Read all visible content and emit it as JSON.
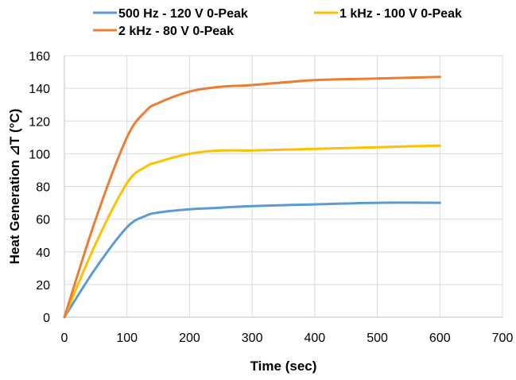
{
  "chart_data": {
    "type": "line",
    "xlabel": "Time (sec)",
    "ylabel": "Heat Generation ⊿T (°C)",
    "xlim": [
      0,
      700
    ],
    "ylim": [
      0,
      160
    ],
    "xticks": [
      "0",
      "100",
      "200",
      "300",
      "400",
      "500",
      "600",
      "700"
    ],
    "yticks": [
      "0",
      "20",
      "40",
      "60",
      "80",
      "100",
      "120",
      "140",
      "160"
    ],
    "grid": true,
    "legend_position": "top",
    "series": [
      {
        "name": "500 Hz - 120 V 0-Peak",
        "color": "#5b9bd5",
        "x": [
          0,
          50,
          100,
          130,
          150,
          200,
          250,
          300,
          400,
          500,
          600
        ],
        "y": [
          0,
          30,
          55,
          62,
          64,
          66,
          67,
          68,
          69,
          70,
          70
        ]
      },
      {
        "name": "1 kHz - 100 V 0-Peak",
        "color": "#ffc000",
        "x": [
          0,
          50,
          100,
          130,
          150,
          200,
          250,
          300,
          400,
          500,
          600
        ],
        "y": [
          0,
          45,
          82,
          92,
          95,
          100,
          102,
          102,
          103,
          104,
          105
        ]
      },
      {
        "name": "2 kHz - 80 V 0-Peak",
        "color": "#ed7d31",
        "x": [
          0,
          50,
          100,
          130,
          150,
          200,
          250,
          300,
          400,
          500,
          600
        ],
        "y": [
          0,
          60,
          110,
          126,
          131,
          138,
          141,
          142,
          145,
          146,
          147
        ]
      }
    ]
  }
}
